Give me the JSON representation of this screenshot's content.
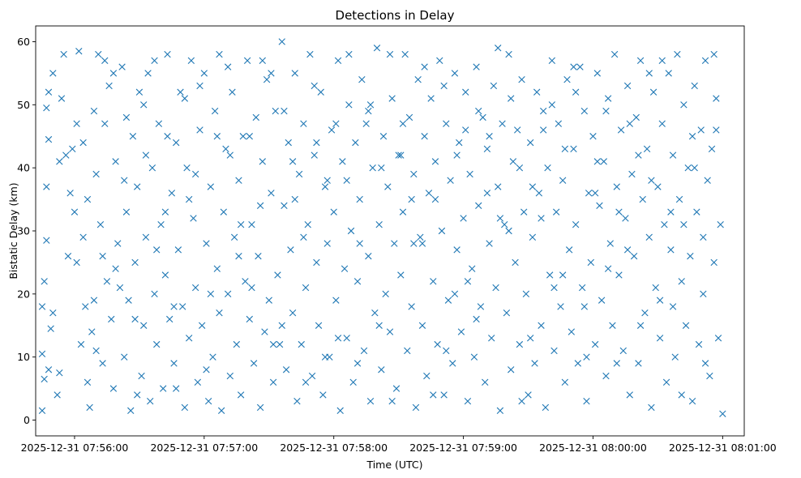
{
  "chart_data": {
    "type": "scatter",
    "title": "Detections in Delay",
    "xlabel": "Time (UTC)",
    "ylabel": "Bistatic Delay (km)",
    "x_unit": "seconds since 07:55:00",
    "xlim": [
      42,
      370
    ],
    "ylim": [
      -2.5,
      62.5
    ],
    "xticks": [
      {
        "value": 60,
        "label": "2025-12-31 07:56:00"
      },
      {
        "value": 120,
        "label": "2025-12-31 07:57:00"
      },
      {
        "value": 180,
        "label": "2025-12-31 07:58:00"
      },
      {
        "value": 240,
        "label": "2025-12-31 07:59:00"
      },
      {
        "value": 300,
        "label": "2025-12-31 08:00:00"
      },
      {
        "value": 360,
        "label": "2025-12-31 08:01:00"
      }
    ],
    "yticks": [
      0,
      10,
      20,
      30,
      40,
      50,
      60
    ],
    "marker": "x",
    "color": "#1f77b4",
    "grid": false,
    "points": [
      [
        45,
        1.5
      ],
      [
        46,
        6.5
      ],
      [
        47,
        28.5
      ],
      [
        47,
        37
      ],
      [
        48,
        44.5
      ],
      [
        45,
        18
      ],
      [
        46,
        22
      ],
      [
        48,
        8
      ],
      [
        49,
        14.5
      ],
      [
        45,
        10.5
      ],
      [
        47,
        49.5
      ],
      [
        48,
        52
      ],
      [
        50,
        55
      ],
      [
        52,
        4
      ],
      [
        53,
        7.5
      ],
      [
        54,
        51
      ],
      [
        55,
        58
      ],
      [
        56,
        42
      ],
      [
        58,
        36
      ],
      [
        60,
        33
      ],
      [
        61,
        25
      ],
      [
        62,
        58.5
      ],
      [
        63,
        12
      ],
      [
        64,
        44
      ],
      [
        65,
        18
      ],
      [
        66,
        6
      ],
      [
        67,
        2
      ],
      [
        68,
        14
      ],
      [
        69,
        49
      ],
      [
        70,
        39
      ],
      [
        71,
        58
      ],
      [
        72,
        31
      ],
      [
        73,
        9
      ],
      [
        74,
        47
      ],
      [
        75,
        22
      ],
      [
        76,
        53
      ],
      [
        77,
        16
      ],
      [
        78,
        5
      ],
      [
        79,
        41
      ],
      [
        80,
        28
      ],
      [
        81,
        21
      ],
      [
        82,
        56
      ],
      [
        83,
        10
      ],
      [
        84,
        33
      ],
      [
        85,
        19
      ],
      [
        86,
        1.5
      ],
      [
        87,
        45
      ],
      [
        88,
        25
      ],
      [
        89,
        37
      ],
      [
        90,
        52
      ],
      [
        91,
        7
      ],
      [
        92,
        15
      ],
      [
        93,
        29
      ],
      [
        94,
        55
      ],
      [
        95,
        3
      ],
      [
        96,
        40
      ],
      [
        97,
        20
      ],
      [
        98,
        12
      ],
      [
        99,
        47
      ],
      [
        100,
        31
      ],
      [
        101,
        5
      ],
      [
        102,
        23
      ],
      [
        103,
        58
      ],
      [
        104,
        16
      ],
      [
        105,
        36
      ],
      [
        106,
        9
      ],
      [
        107,
        44
      ],
      [
        108,
        27
      ],
      [
        109,
        52
      ],
      [
        110,
        18
      ],
      [
        111,
        2
      ],
      [
        112,
        40
      ],
      [
        113,
        13
      ],
      [
        114,
        57
      ],
      [
        115,
        32
      ],
      [
        116,
        21
      ],
      [
        117,
        6
      ],
      [
        118,
        46
      ],
      [
        119,
        15
      ],
      [
        120,
        55
      ],
      [
        121,
        28
      ],
      [
        122,
        3
      ],
      [
        123,
        37
      ],
      [
        124,
        10
      ],
      [
        125,
        49
      ],
      [
        126,
        24
      ],
      [
        127,
        17
      ],
      [
        128,
        1.5
      ],
      [
        129,
        33
      ],
      [
        130,
        43
      ],
      [
        131,
        20
      ],
      [
        132,
        7
      ],
      [
        133,
        52
      ],
      [
        134,
        29
      ],
      [
        135,
        12
      ],
      [
        136,
        38
      ],
      [
        137,
        4
      ],
      [
        138,
        45
      ],
      [
        139,
        22
      ],
      [
        140,
        57
      ],
      [
        141,
        16
      ],
      [
        142,
        31
      ],
      [
        143,
        9
      ],
      [
        144,
        48
      ],
      [
        145,
        26
      ],
      [
        146,
        2
      ],
      [
        147,
        41
      ],
      [
        148,
        14
      ],
      [
        149,
        54
      ],
      [
        150,
        19
      ],
      [
        151,
        36
      ],
      [
        152,
        6
      ],
      [
        153,
        49
      ],
      [
        154,
        23
      ],
      [
        155,
        12
      ],
      [
        156,
        60
      ],
      [
        157,
        34
      ],
      [
        158,
        8
      ],
      [
        159,
        44
      ],
      [
        160,
        27
      ],
      [
        161,
        17
      ],
      [
        162,
        55
      ],
      [
        163,
        3
      ],
      [
        164,
        39
      ],
      [
        165,
        12
      ],
      [
        166,
        47
      ],
      [
        167,
        21
      ],
      [
        168,
        31
      ],
      [
        169,
        58
      ],
      [
        170,
        7
      ],
      [
        171,
        42
      ],
      [
        172,
        25
      ],
      [
        173,
        15
      ],
      [
        174,
        52
      ],
      [
        175,
        4
      ],
      [
        176,
        37
      ],
      [
        177,
        28
      ],
      [
        178,
        10
      ],
      [
        179,
        46
      ],
      [
        180,
        33
      ],
      [
        181,
        19
      ],
      [
        182,
        57
      ],
      [
        183,
        1.5
      ],
      [
        184,
        41
      ],
      [
        185,
        24
      ],
      [
        186,
        13
      ],
      [
        187,
        50
      ],
      [
        188,
        30
      ],
      [
        189,
        6
      ],
      [
        190,
        44
      ],
      [
        191,
        22
      ],
      [
        192,
        35
      ],
      [
        193,
        54
      ],
      [
        194,
        11
      ],
      [
        195,
        47
      ],
      [
        196,
        26
      ],
      [
        197,
        3
      ],
      [
        198,
        40
      ],
      [
        199,
        17
      ],
      [
        200,
        59
      ],
      [
        201,
        31
      ],
      [
        202,
        8
      ],
      [
        203,
        45
      ],
      [
        204,
        20
      ],
      [
        205,
        37
      ],
      [
        206,
        14
      ],
      [
        207,
        51
      ],
      [
        208,
        28
      ],
      [
        209,
        5
      ],
      [
        210,
        42
      ],
      [
        211,
        23
      ],
      [
        212,
        33
      ],
      [
        213,
        58
      ],
      [
        214,
        11
      ],
      [
        215,
        48
      ],
      [
        216,
        18
      ],
      [
        217,
        39
      ],
      [
        218,
        2
      ],
      [
        219,
        54
      ],
      [
        220,
        29
      ],
      [
        221,
        15
      ],
      [
        222,
        45
      ],
      [
        223,
        7
      ],
      [
        224,
        36
      ],
      [
        225,
        51
      ],
      [
        226,
        22
      ],
      [
        227,
        41
      ],
      [
        228,
        12
      ],
      [
        229,
        57
      ],
      [
        230,
        30
      ],
      [
        231,
        4
      ],
      [
        232,
        47
      ],
      [
        233,
        19
      ],
      [
        234,
        38
      ],
      [
        235,
        9
      ],
      [
        236,
        55
      ],
      [
        237,
        27
      ],
      [
        238,
        44
      ],
      [
        239,
        14
      ],
      [
        240,
        32
      ],
      [
        241,
        52
      ],
      [
        242,
        3
      ],
      [
        243,
        39
      ],
      [
        244,
        24
      ],
      [
        245,
        10
      ],
      [
        246,
        56
      ],
      [
        247,
        34
      ],
      [
        248,
        18
      ],
      [
        249,
        48
      ],
      [
        250,
        6
      ],
      [
        251,
        43
      ],
      [
        252,
        28
      ],
      [
        253,
        13
      ],
      [
        254,
        53
      ],
      [
        255,
        21
      ],
      [
        256,
        37
      ],
      [
        257,
        1.5
      ],
      [
        258,
        47
      ],
      [
        259,
        31
      ],
      [
        260,
        17
      ],
      [
        261,
        58
      ],
      [
        262,
        8
      ],
      [
        263,
        41
      ],
      [
        264,
        25
      ],
      [
        265,
        46
      ],
      [
        266,
        12
      ],
      [
        267,
        54
      ],
      [
        268,
        33
      ],
      [
        269,
        20
      ],
      [
        270,
        4
      ],
      [
        271,
        44
      ],
      [
        272,
        29
      ],
      [
        273,
        9
      ],
      [
        274,
        52
      ],
      [
        275,
        36
      ],
      [
        276,
        15
      ],
      [
        277,
        49
      ],
      [
        278,
        2
      ],
      [
        279,
        40
      ],
      [
        280,
        23
      ],
      [
        281,
        57
      ],
      [
        282,
        11
      ],
      [
        283,
        33
      ],
      [
        284,
        47
      ],
      [
        285,
        18
      ],
      [
        286,
        38
      ],
      [
        287,
        6
      ],
      [
        288,
        54
      ],
      [
        289,
        27
      ],
      [
        290,
        14
      ],
      [
        291,
        43
      ],
      [
        292,
        31
      ],
      [
        293,
        9
      ],
      [
        294,
        56
      ],
      [
        295,
        21
      ],
      [
        296,
        49
      ],
      [
        297,
        3
      ],
      [
        298,
        36
      ],
      [
        299,
        25
      ],
      [
        300,
        45
      ],
      [
        301,
        12
      ],
      [
        302,
        55
      ],
      [
        303,
        34
      ],
      [
        304,
        19
      ],
      [
        305,
        41
      ],
      [
        306,
        7
      ],
      [
        307,
        51
      ],
      [
        308,
        28
      ],
      [
        309,
        15
      ],
      [
        310,
        58
      ],
      [
        311,
        37
      ],
      [
        312,
        23
      ],
      [
        313,
        46
      ],
      [
        314,
        11
      ],
      [
        315,
        32
      ],
      [
        316,
        53
      ],
      [
        317,
        4
      ],
      [
        318,
        39
      ],
      [
        319,
        26
      ],
      [
        320,
        48
      ],
      [
        321,
        9
      ],
      [
        322,
        57
      ],
      [
        323,
        35
      ],
      [
        324,
        17
      ],
      [
        325,
        43
      ],
      [
        326,
        29
      ],
      [
        327,
        2
      ],
      [
        328,
        52
      ],
      [
        329,
        21
      ],
      [
        330,
        37
      ],
      [
        331,
        13
      ],
      [
        332,
        47
      ],
      [
        333,
        31
      ],
      [
        334,
        6
      ],
      [
        335,
        55
      ],
      [
        336,
        27
      ],
      [
        337,
        42
      ],
      [
        338,
        10
      ],
      [
        339,
        58
      ],
      [
        340,
        35
      ],
      [
        341,
        22
      ],
      [
        342,
        50
      ],
      [
        343,
        15
      ],
      [
        344,
        40
      ],
      [
        345,
        26
      ],
      [
        346,
        3
      ],
      [
        347,
        53
      ],
      [
        348,
        33
      ],
      [
        349,
        12
      ],
      [
        350,
        46
      ],
      [
        351,
        20
      ],
      [
        352,
        57
      ],
      [
        353,
        38
      ],
      [
        354,
        7
      ],
      [
        355,
        43
      ],
      [
        356,
        25
      ],
      [
        357,
        51
      ],
      [
        358,
        13
      ],
      [
        359,
        31
      ],
      [
        360,
        1
      ],
      [
        50,
        17
      ],
      [
        53,
        41
      ],
      [
        57,
        26
      ],
      [
        61,
        47
      ],
      [
        66,
        35
      ],
      [
        70,
        11
      ],
      [
        74,
        57
      ],
      [
        79,
        24
      ],
      [
        84,
        48
      ],
      [
        89,
        4
      ],
      [
        93,
        42
      ],
      [
        97,
        57
      ],
      [
        102,
        33
      ],
      [
        106,
        18
      ],
      [
        111,
        51
      ],
      [
        116,
        39
      ],
      [
        121,
        8
      ],
      [
        126,
        45
      ],
      [
        131,
        56
      ],
      [
        136,
        26
      ],
      [
        141,
        45
      ],
      [
        146,
        34
      ],
      [
        151,
        55
      ],
      [
        156,
        15
      ],
      [
        161,
        41
      ],
      [
        166,
        29
      ],
      [
        171,
        53
      ],
      [
        176,
        10
      ],
      [
        181,
        47
      ],
      [
        186,
        38
      ],
      [
        191,
        9
      ],
      [
        196,
        49
      ],
      [
        201,
        15
      ],
      [
        206,
        58
      ],
      [
        211,
        42
      ],
      [
        216,
        35
      ],
      [
        221,
        28
      ],
      [
        226,
        4
      ],
      [
        231,
        53
      ],
      [
        236,
        20
      ],
      [
        241,
        46
      ],
      [
        246,
        16
      ],
      [
        251,
        36
      ],
      [
        256,
        59
      ],
      [
        261,
        30
      ],
      [
        266,
        40
      ],
      [
        271,
        13
      ],
      [
        276,
        32
      ],
      [
        281,
        50
      ],
      [
        286,
        23
      ],
      [
        291,
        56
      ],
      [
        296,
        18
      ],
      [
        301,
        36
      ],
      [
        306,
        49
      ],
      [
        311,
        9
      ],
      [
        316,
        27
      ],
      [
        321,
        42
      ],
      [
        326,
        55
      ],
      [
        331,
        19
      ],
      [
        336,
        33
      ],
      [
        341,
        4
      ],
      [
        346,
        45
      ],
      [
        351,
        29
      ],
      [
        356,
        58
      ],
      [
        59,
        43
      ],
      [
        64,
        29
      ],
      [
        69,
        19
      ],
      [
        73,
        26
      ],
      [
        78,
        55
      ],
      [
        83,
        38
      ],
      [
        88,
        16
      ],
      [
        92,
        50
      ],
      [
        98,
        27
      ],
      [
        103,
        45
      ],
      [
        107,
        5
      ],
      [
        113,
        35
      ],
      [
        118,
        53
      ],
      [
        123,
        20
      ],
      [
        127,
        58
      ],
      [
        132,
        42
      ],
      [
        137,
        31
      ],
      [
        142,
        21
      ],
      [
        147,
        57
      ],
      [
        152,
        12
      ],
      [
        157,
        49
      ],
      [
        162,
        35
      ],
      [
        167,
        6
      ],
      [
        172,
        44
      ],
      [
        177,
        38
      ],
      [
        182,
        13
      ],
      [
        187,
        58
      ],
      [
        192,
        28
      ],
      [
        197,
        50
      ],
      [
        202,
        40
      ],
      [
        207,
        3
      ],
      [
        212,
        47
      ],
      [
        217,
        28
      ],
      [
        222,
        56
      ],
      [
        227,
        35
      ],
      [
        232,
        11
      ],
      [
        237,
        42
      ],
      [
        242,
        22
      ],
      [
        247,
        49
      ],
      [
        252,
        45
      ],
      [
        257,
        32
      ],
      [
        262,
        51
      ],
      [
        267,
        3
      ],
      [
        272,
        37
      ],
      [
        277,
        46
      ],
      [
        282,
        21
      ],
      [
        287,
        43
      ],
      [
        292,
        52
      ],
      [
        297,
        10
      ],
      [
        302,
        41
      ],
      [
        307,
        24
      ],
      [
        312,
        33
      ],
      [
        317,
        47
      ],
      [
        322,
        15
      ],
      [
        327,
        38
      ],
      [
        332,
        57
      ],
      [
        337,
        18
      ],
      [
        342,
        31
      ],
      [
        347,
        40
      ],
      [
        352,
        9
      ],
      [
        357,
        46
      ]
    ]
  }
}
